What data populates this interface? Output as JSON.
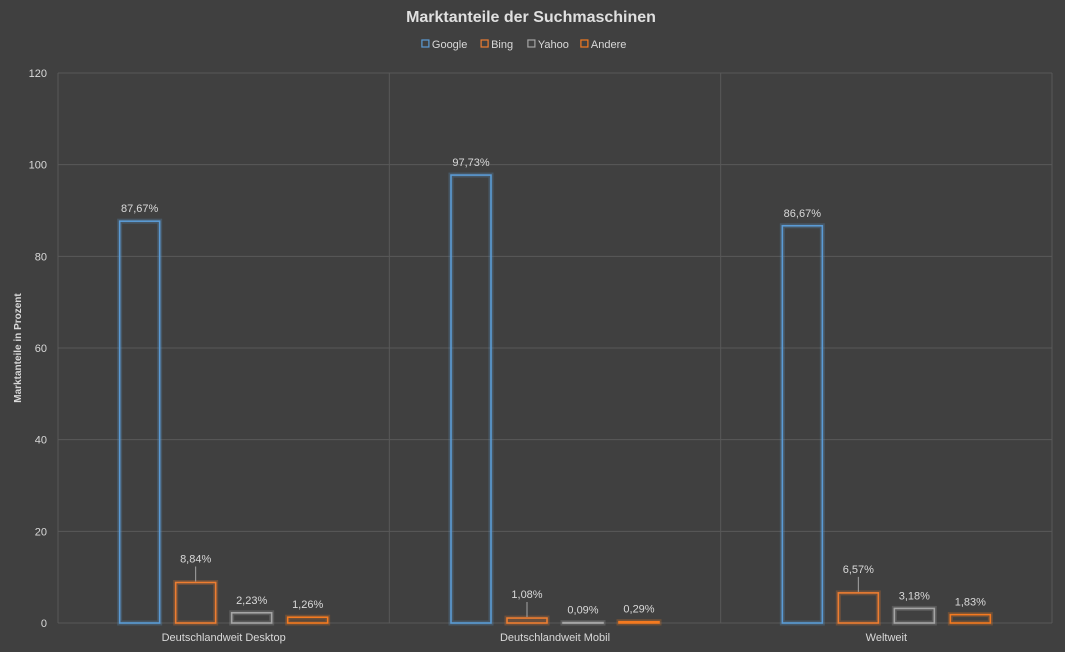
{
  "colors": {
    "background": "#404040",
    "grid": "#595959",
    "text": "#d9d9d9",
    "leader": "#a6a6a6"
  },
  "chart_data": {
    "type": "bar",
    "title": "Marktanteile der Suchmaschinen",
    "xlabel": "",
    "ylabel": "Marktanteile in Prozent",
    "ylim": [
      0,
      120
    ],
    "yticks": [
      0,
      20,
      40,
      60,
      80,
      100,
      120
    ],
    "grid": true,
    "legend_position": "top-center",
    "categories": [
      "Deutschlandweit Desktop",
      "Deutschlandweit Mobil",
      "Weltweit"
    ],
    "series": [
      {
        "name": "Google",
        "color": "#5b9bd5",
        "values": [
          87.67,
          97.73,
          86.67
        ],
        "labels": [
          "87,67%",
          "97,73%",
          "86,67%"
        ]
      },
      {
        "name": "Bing",
        "color": "#ed7d31",
        "values": [
          8.84,
          1.08,
          6.57
        ],
        "labels": [
          "8,84%",
          "1,08%",
          "6,57%"
        ]
      },
      {
        "name": "Yahoo",
        "color": "#a5a5a5",
        "values": [
          2.23,
          0.09,
          3.18
        ],
        "labels": [
          "2,23%",
          "0,09%",
          "3,18%"
        ]
      },
      {
        "name": "Andere",
        "color": "#f47a20",
        "values": [
          1.26,
          0.29,
          1.83
        ],
        "labels": [
          "1,26%",
          "0,29%",
          "1,83%"
        ]
      }
    ]
  }
}
